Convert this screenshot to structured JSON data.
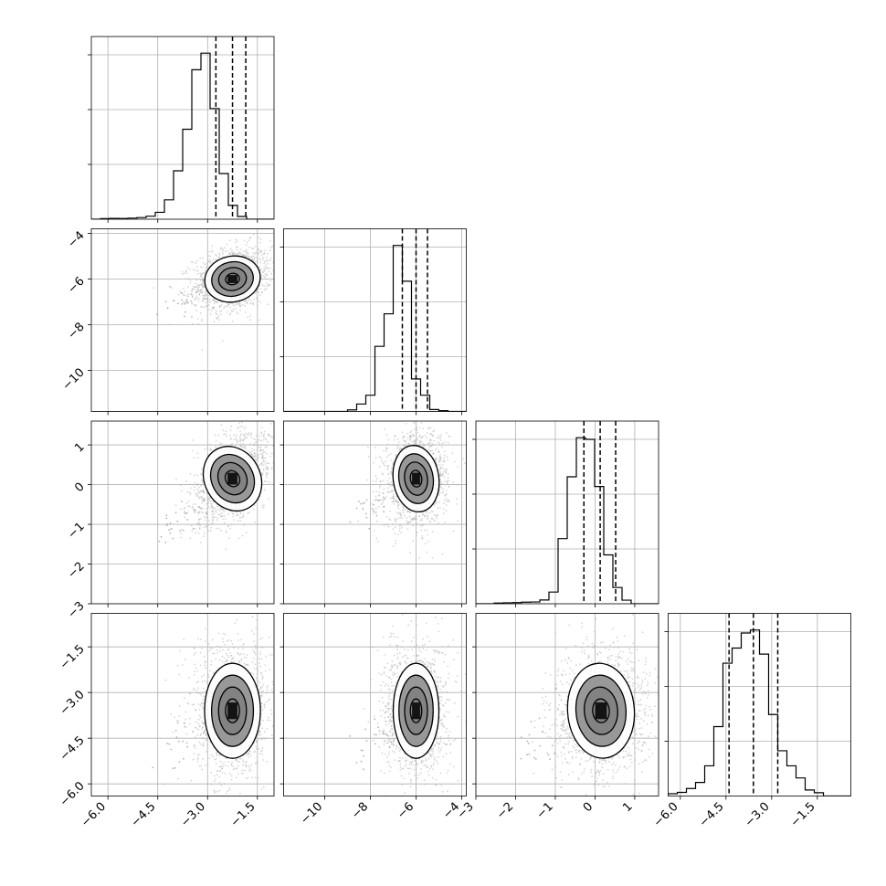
{
  "chart_data": {
    "type": "corner",
    "title": "",
    "grid": true,
    "n_params": 4,
    "params": [
      {
        "name": "",
        "range": [
          -6.5,
          -1.0
        ],
        "ticks": [
          -6.0,
          -4.5,
          -3.0,
          -1.5
        ],
        "tick_labels": [
          "−6.0",
          "−4.5",
          "−3.0",
          "−1.5"
        ],
        "quantiles": [
          -2.75,
          -2.25,
          -1.85
        ]
      },
      {
        "name": "",
        "range": [
          -11.8,
          -3.8
        ],
        "ticks": [
          -10,
          -8,
          -6,
          -4
        ],
        "tick_labels": [
          "−10",
          "−8",
          "−6",
          "−4"
        ],
        "quantiles": [
          -6.6,
          -6.0,
          -5.5
        ]
      },
      {
        "name": "",
        "range": [
          -3.0,
          1.6
        ],
        "ticks": [
          -3,
          -2,
          -1,
          0,
          1
        ],
        "tick_labels": [
          "−3",
          "−2",
          "−1",
          "0",
          "1"
        ],
        "quantiles": [
          -0.28,
          0.13,
          0.52
        ]
      },
      {
        "name": "",
        "range": [
          -6.4,
          -0.4
        ],
        "ticks": [
          -6.0,
          -4.5,
          -3.0,
          -1.5
        ],
        "tick_labels": [
          "−6.0",
          "−4.5",
          "−3.0",
          "−1.5"
        ],
        "quantiles": [
          -4.4,
          -3.6,
          -2.8
        ]
      }
    ],
    "histograms": [
      {
        "param": 0,
        "bins": 20,
        "counts": [
          0,
          0.4,
          0.6,
          0.5,
          0.8,
          1.2,
          2.2,
          5,
          14,
          35,
          65,
          108,
          120,
          80,
          33,
          10,
          2,
          0,
          0,
          0
        ]
      },
      {
        "param": 1,
        "bins": 20,
        "counts": [
          0,
          0,
          0,
          0,
          0,
          0,
          0,
          1.0,
          4.6,
          10,
          40,
          60,
          102,
          80,
          20,
          10,
          1.2,
          0.5,
          0,
          0
        ]
      },
      {
        "param": 2,
        "bins": 20,
        "counts": [
          0,
          0,
          0.4,
          0.6,
          0.7,
          1.0,
          1.1,
          2.3,
          7.2,
          40,
          78,
          102,
          101,
          72,
          30,
          10,
          2.2,
          0,
          0,
          0
        ]
      },
      {
        "param": 3,
        "bins": 20,
        "counts": [
          1.5,
          2.4,
          5,
          9,
          20,
          46,
          88,
          98,
          108,
          110,
          94,
          54,
          30,
          20,
          12,
          4,
          2.2,
          0,
          0,
          0
        ]
      }
    ],
    "pairs": [
      {
        "x": 0,
        "y": 1,
        "center": [
          -2.25,
          -6.0
        ],
        "sd": [
          0.42,
          0.5
        ],
        "rho": 0.25
      },
      {
        "x": 0,
        "y": 2,
        "center": [
          -2.25,
          0.15
        ],
        "sd": [
          0.42,
          0.42
        ],
        "rho": 0.45
      },
      {
        "x": 1,
        "y": 2,
        "center": [
          -6.0,
          0.15
        ],
        "sd": [
          0.5,
          0.42
        ],
        "rho": 0.1
      },
      {
        "x": 0,
        "y": 3,
        "center": [
          -2.25,
          -3.6
        ],
        "sd": [
          0.42,
          0.78
        ],
        "rho": 0.0
      },
      {
        "x": 1,
        "y": 3,
        "center": [
          -6.0,
          -3.6
        ],
        "sd": [
          0.5,
          0.78
        ],
        "rho": 0.0
      },
      {
        "x": 2,
        "y": 3,
        "center": [
          0.15,
          -3.6
        ],
        "sd": [
          0.42,
          0.78
        ],
        "rho": 0.05
      }
    ],
    "contour_levels_sigma": [
      0.5,
      1.0,
      1.5,
      2.0
    ],
    "colors": {
      "line": "#000000",
      "grid": "#b0b0b0",
      "scatter": "#b4b4b4",
      "shade": "#6e6e6e",
      "background": "#ffffff"
    }
  }
}
